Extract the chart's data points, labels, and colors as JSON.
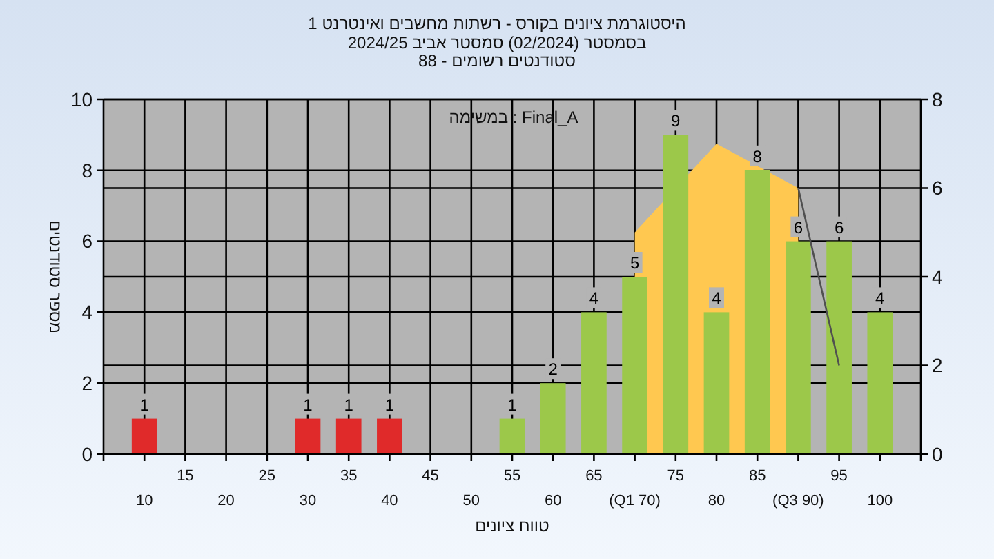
{
  "chart_data": {
    "type": "bar",
    "title": "היסטוגרמת ציונים בקורס - רשתות מחשבים ואינטרנט 1",
    "subtitle": "בסמסטר  (02/2024)  סמסטר אביב 2024/25\nסטודנטים רשומים - 88",
    "xlabel": "טווח ציונים",
    "ylabel": "מספר סטודנטים",
    "annotations": [
      "במשימה : Final_A"
    ],
    "categories": [
      "10",
      "15",
      "20",
      "25",
      "30",
      "35",
      "40",
      "45",
      "50",
      "55",
      "60",
      "65",
      "(Q1 70)",
      "75",
      "80",
      "85",
      "(Q3 90)",
      "95",
      "100"
    ],
    "series": [
      {
        "type": "area",
        "axis": "y2",
        "color": "#ffc850",
        "values": [
          null,
          null,
          null,
          null,
          null,
          null,
          null,
          null,
          null,
          null,
          null,
          null,
          5,
          null,
          7,
          null,
          6,
          null,
          null
        ]
      },
      {
        "type": "line",
        "axis": "y2",
        "color": "#505050",
        "values": [
          null,
          null,
          null,
          null,
          null,
          null,
          null,
          null,
          null,
          null,
          null,
          null,
          null,
          null,
          null,
          null,
          6,
          2,
          null
        ]
      },
      {
        "colors": [
          "#e02a2a",
          "#e02a2a",
          "#e02a2a",
          "#e02a2a",
          "#e02a2a",
          "#e02a2a",
          "#e02a2a",
          "#e02a2a",
          "#e02a2a",
          "#9cc84a",
          "#9cc84a",
          "#9cc84a",
          "#9cc84a",
          "#9cc84a",
          "#9cc84a",
          "#9cc84a",
          "#9cc84a",
          "#9cc84a",
          "#9cc84a"
        ],
        "values": [
          1,
          0,
          0,
          0,
          1,
          1,
          1,
          0,
          0,
          1,
          2,
          4,
          5,
          9,
          4,
          8,
          6,
          6,
          4
        ],
        "value_labels": [
          "1",
          null,
          null,
          null,
          "1",
          "1",
          "1",
          null,
          null,
          "1",
          "2",
          "4",
          "5",
          "9",
          "4",
          "8",
          "6",
          "6",
          "4"
        ]
      }
    ],
    "ylim": [
      0,
      10
    ],
    "yticks": [
      0,
      2,
      4,
      6,
      8,
      10
    ],
    "y2lim": [
      0,
      8
    ],
    "y2ticks": [
      0,
      2,
      4,
      6,
      8
    ],
    "grid": true
  }
}
